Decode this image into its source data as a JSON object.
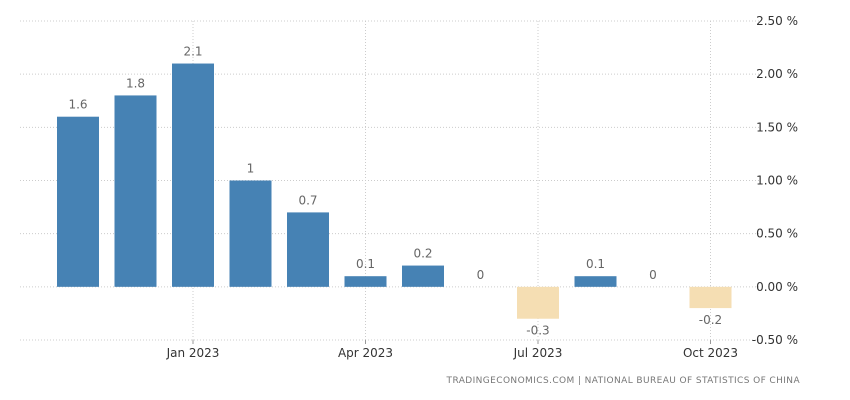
{
  "chart_data": {
    "type": "bar",
    "categories": [
      "2022-11",
      "2022-12",
      "2023-01",
      "2023-02",
      "2023-03",
      "2023-04",
      "2023-05",
      "2023-06",
      "2023-07",
      "2023-08",
      "2023-09",
      "2023-10"
    ],
    "values": [
      1.6,
      1.8,
      2.1,
      1.0,
      0.7,
      0.1,
      0.2,
      0.0,
      -0.3,
      0.1,
      0.0,
      -0.2
    ],
    "data_labels": [
      "1.6",
      "1.8",
      "2.1",
      "1",
      "0.7",
      "0.1",
      "0.2",
      "0",
      "-0.3",
      "0.1",
      "0",
      "-0.2"
    ],
    "x_tick_labels": [
      {
        "category": "2023-01",
        "label": "Jan 2023"
      },
      {
        "category": "2023-04",
        "label": "Apr 2023"
      },
      {
        "category": "2023-07",
        "label": "Jul 2023"
      },
      {
        "category": "2023-10",
        "label": "Oct 2023"
      }
    ],
    "y_ticks": [
      -0.5,
      0.0,
      0.5,
      1.0,
      1.5,
      2.0,
      2.5
    ],
    "y_tick_labels": [
      "-0.50 %",
      "0.00 %",
      "0.50 %",
      "1.00 %",
      "1.50 %",
      "2.00 %",
      "2.50 %"
    ],
    "ylim": [
      -0.5,
      2.5
    ],
    "y_axis_position": "right",
    "grid": true,
    "colors": {
      "positive": "#4682b4",
      "negative": "#f5deb3",
      "grid": "#cccccc",
      "label": "#666666"
    },
    "source": "TRADINGECONOMICS.COM | NATIONAL BUREAU OF STATISTICS OF CHINA"
  }
}
